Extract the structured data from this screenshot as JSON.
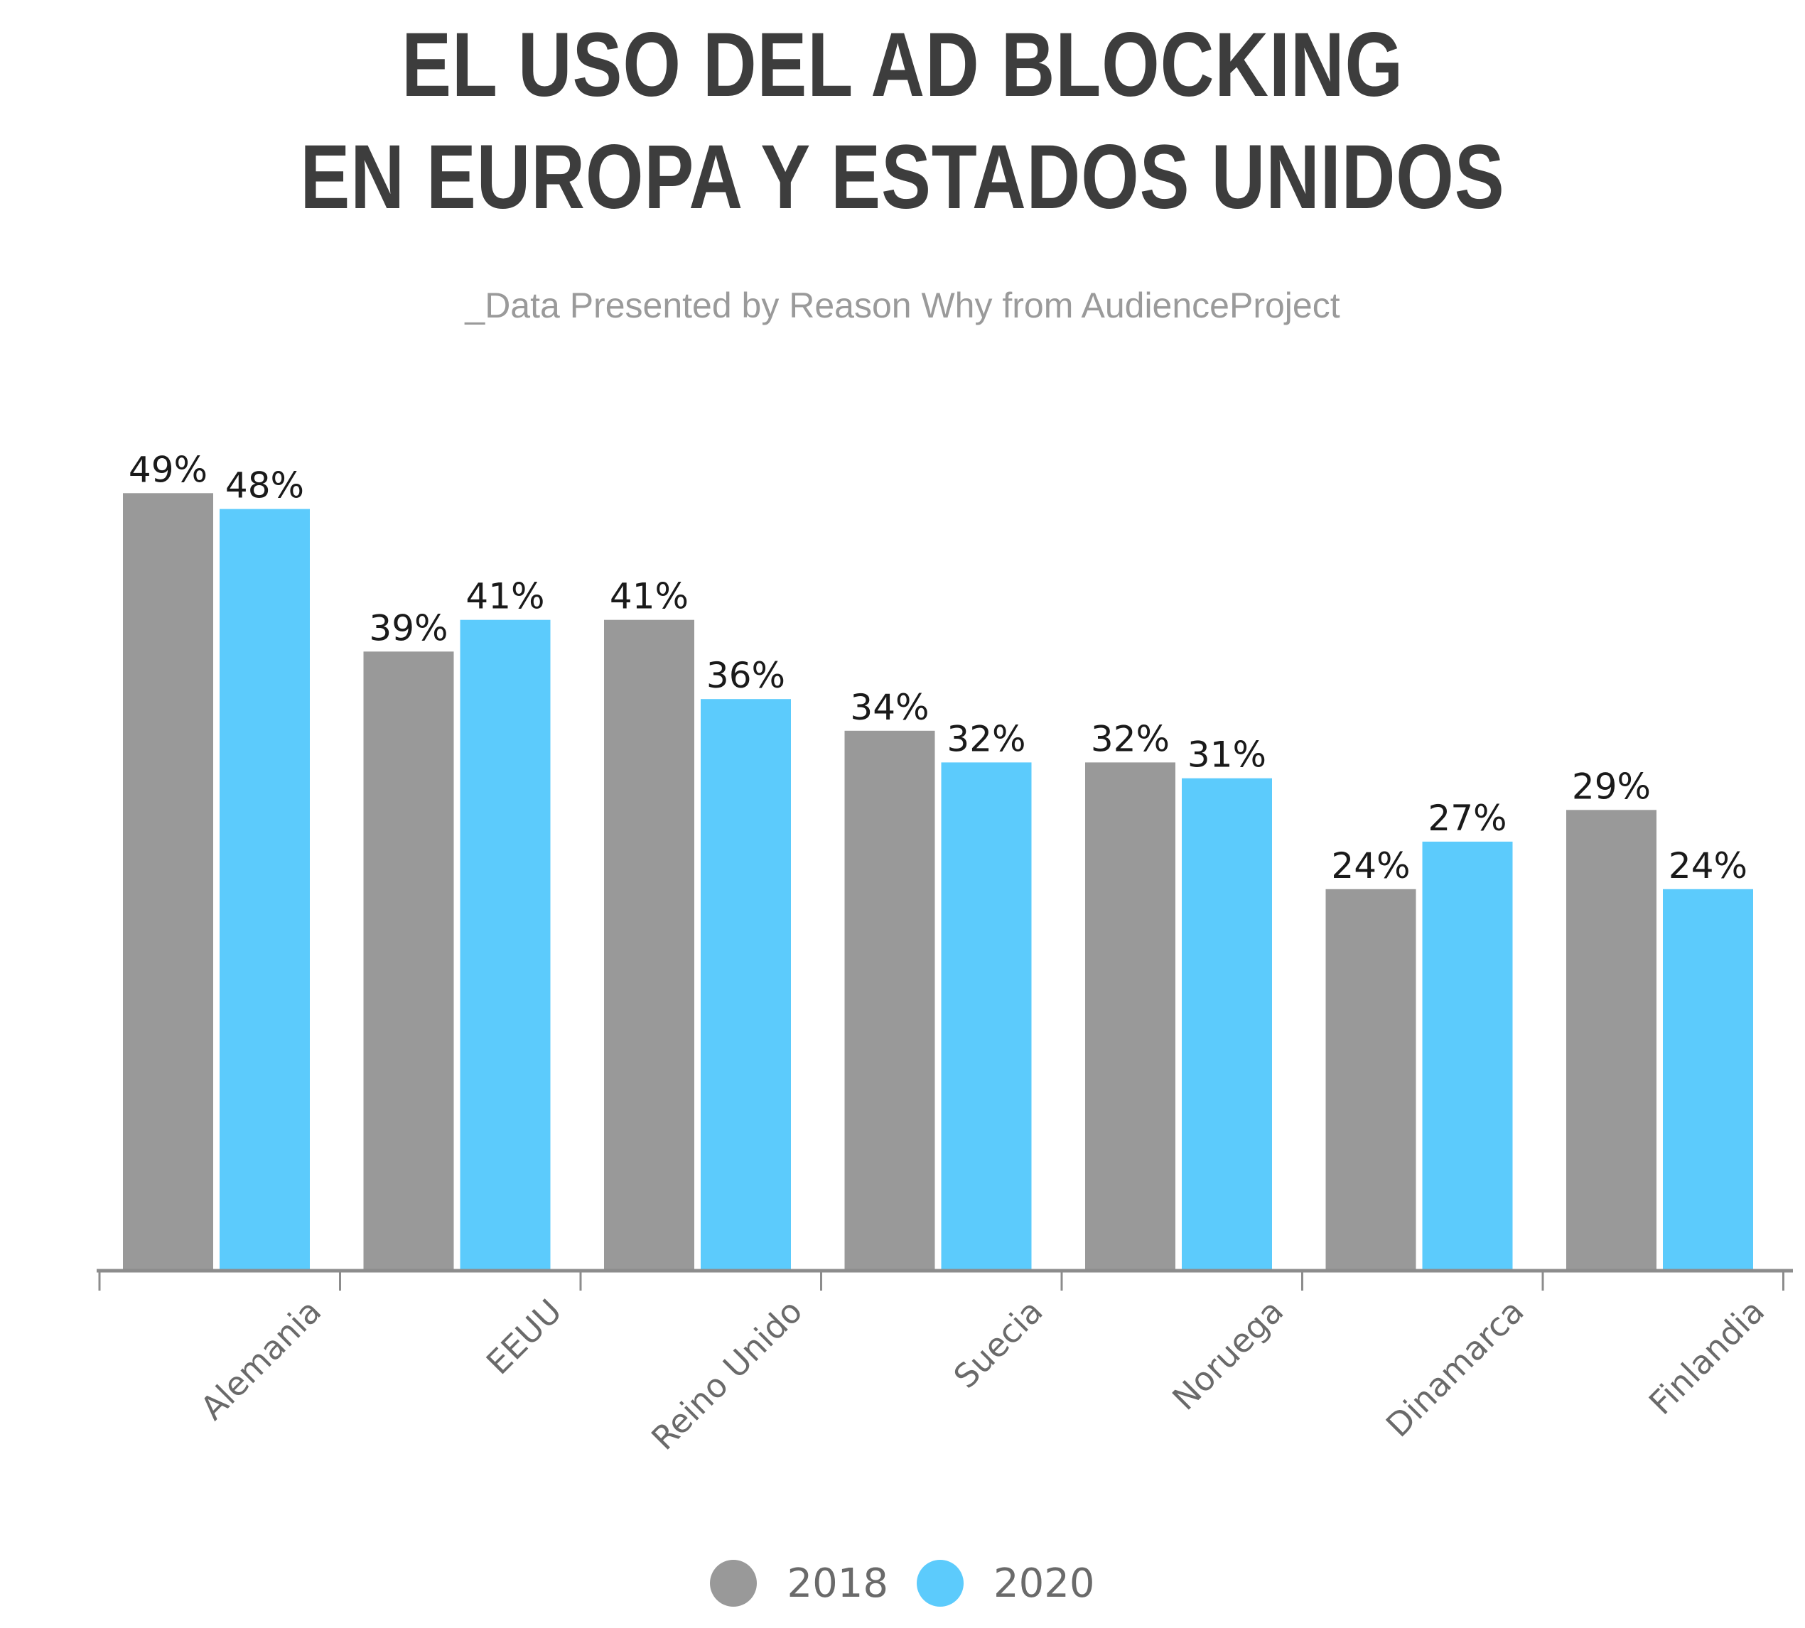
{
  "title_lines": [
    "EL USO DEL AD BLOCKING",
    "EN EUROPA Y ESTADOS UNIDOS"
  ],
  "subtitle": "_Data Presented by Reason Why from AudienceProject",
  "colors": {
    "series_2018": "#999999",
    "series_2020": "#5ccbfc",
    "axis": "#8c8c8c",
    "title": "#3d3d3d"
  },
  "chart_data": {
    "type": "bar",
    "title": "EL USO DEL AD BLOCKING EN EUROPA Y ESTADOS UNIDOS",
    "subtitle": "_Data Presented by Reason Why from AudienceProject",
    "xlabel": "",
    "ylabel": "",
    "categories": [
      "Alemania",
      "EEUU",
      "Reino Unido",
      "Suecia",
      "Noruega",
      "Dinamarca",
      "Finlandia"
    ],
    "series": [
      {
        "name": "2018",
        "values": [
          49,
          39,
          41,
          34,
          32,
          24,
          29
        ],
        "labels": [
          "49%",
          "39%",
          "41%",
          "34%",
          "32%",
          "24%",
          "29%"
        ]
      },
      {
        "name": "2020",
        "values": [
          48,
          41,
          36,
          32,
          31,
          27,
          24
        ],
        "labels": [
          "48%",
          "41%",
          "36%",
          "32%",
          "31%",
          "27%",
          "24%"
        ]
      }
    ],
    "ylim": [
      0,
      49
    ],
    "grid": false,
    "legend": "bottom-center",
    "x_tick_rotation": -45
  }
}
